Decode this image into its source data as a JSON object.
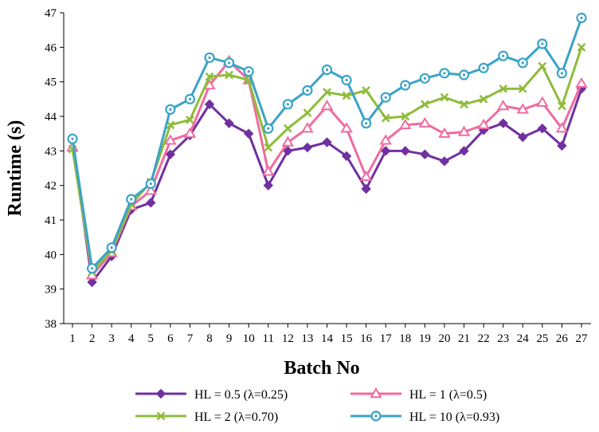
{
  "chart_data": {
    "type": "line",
    "title": "",
    "xlabel": "Batch No",
    "ylabel": "Runtime (s)",
    "ylim": [
      38,
      47
    ],
    "yticks": [
      38,
      39,
      40,
      41,
      42,
      43,
      44,
      45,
      46,
      47
    ],
    "categories": [
      "1",
      "2",
      "3",
      "4",
      "5",
      "6",
      "7",
      "8",
      "9",
      "10",
      "11",
      "12",
      "13",
      "14",
      "15",
      "16",
      "17",
      "18",
      "19",
      "20",
      "21",
      "22",
      "23",
      "24",
      "25",
      "26",
      "27"
    ],
    "grid": false,
    "legend_position": "bottom",
    "series": [
      {
        "name": "HL = 0.5 (λ=0.25)",
        "color": "#7030a0",
        "marker": "diamond",
        "values": [
          43.3,
          39.2,
          39.95,
          41.3,
          41.5,
          42.9,
          43.45,
          44.35,
          43.8,
          43.5,
          42.0,
          43.0,
          43.1,
          43.25,
          42.85,
          41.9,
          43.0,
          43.0,
          42.9,
          42.7,
          43.0,
          43.6,
          43.8,
          43.4,
          43.65,
          43.15,
          44.8
        ]
      },
      {
        "name": "HL = 1 (λ=0.5)",
        "color": "#f06ba0",
        "marker": "triangle",
        "values": [
          43.1,
          39.4,
          40.05,
          41.4,
          41.85,
          43.3,
          43.5,
          44.9,
          45.6,
          45.05,
          42.4,
          43.25,
          43.65,
          44.3,
          43.65,
          42.25,
          43.3,
          43.75,
          43.8,
          43.5,
          43.55,
          43.75,
          44.3,
          44.2,
          44.4,
          43.65,
          44.95
        ]
      },
      {
        "name": "HL = 2 (λ=0.70)",
        "color": "#8fbc3c",
        "marker": "x",
        "values": [
          43.05,
          39.5,
          40.1,
          41.45,
          42.1,
          43.75,
          43.9,
          45.15,
          45.2,
          45.05,
          43.1,
          43.65,
          44.1,
          44.7,
          44.6,
          44.75,
          43.95,
          44.0,
          44.35,
          44.55,
          44.35,
          44.5,
          44.8,
          44.8,
          45.45,
          44.3,
          46.0
        ]
      },
      {
        "name": "HL = 10 (λ=0.93)",
        "color": "#3ba3c7",
        "marker": "circle",
        "values": [
          43.35,
          39.6,
          40.2,
          41.6,
          42.05,
          44.2,
          44.5,
          45.7,
          45.55,
          45.3,
          43.65,
          44.35,
          44.75,
          45.35,
          45.05,
          43.8,
          44.55,
          44.9,
          45.1,
          45.25,
          45.2,
          45.4,
          45.75,
          45.55,
          46.1,
          45.25,
          46.85
        ]
      }
    ]
  }
}
